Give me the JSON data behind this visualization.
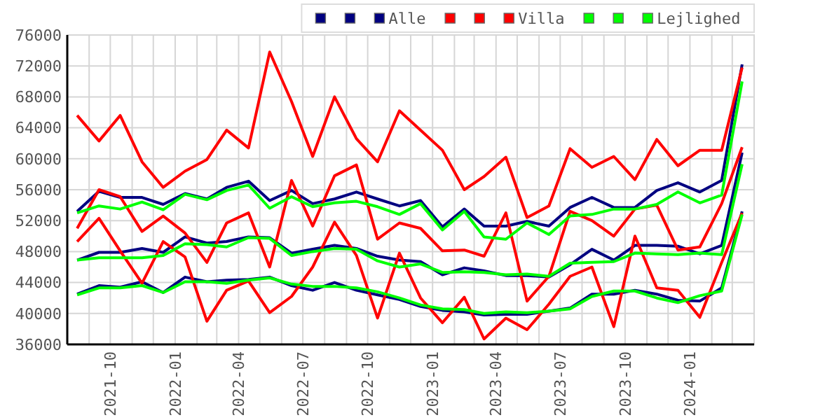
{
  "chart_data": {
    "type": "line",
    "x": [
      "2021-08-15",
      "2021-09-15",
      "2021-10-15",
      "2021-11-15",
      "2021-12-15",
      "2022-01-15",
      "2022-02-15",
      "2022-03-15",
      "2022-04-15",
      "2022-05-15",
      "2022-06-15",
      "2022-07-15",
      "2022-08-15",
      "2022-09-15",
      "2022-10-15",
      "2022-11-15",
      "2022-12-15",
      "2023-01-15",
      "2023-02-15",
      "2023-03-15",
      "2023-04-15",
      "2023-05-15",
      "2023-06-15",
      "2023-07-15",
      "2023-08-15",
      "2023-09-15",
      "2023-10-15",
      "2023-11-15",
      "2023-12-15",
      "2024-01-15",
      "2024-02-15",
      "2024-03-15"
    ],
    "series": [
      {
        "color": "#000080",
        "values": [
          53200,
          55800,
          55000,
          55000,
          54100,
          55500,
          54800,
          56300,
          57100,
          54600,
          55900,
          54200,
          54800,
          55700,
          54800,
          53900,
          54600,
          51200,
          53500,
          51300,
          51300,
          51900,
          51300,
          53700,
          55000,
          53700,
          53700,
          55900,
          56900,
          55700,
          57200,
          72200
        ]
      },
      {
        "color": "#000080",
        "values": [
          46900,
          47900,
          47900,
          48400,
          47900,
          49900,
          49100,
          49300,
          49900,
          49800,
          47800,
          48300,
          48800,
          48400,
          47400,
          46900,
          46700,
          45000,
          45900,
          45500,
          44900,
          44900,
          44700,
          46300,
          48300,
          46900,
          48800,
          48800,
          48700,
          47700,
          48800,
          60800
        ]
      },
      {
        "color": "#000080",
        "name": "Alle",
        "values": [
          42500,
          43600,
          43400,
          44100,
          42700,
          44700,
          44100,
          44300,
          44400,
          44700,
          43600,
          43000,
          44000,
          43000,
          42400,
          41800,
          40900,
          40400,
          40200,
          39800,
          39900,
          39900,
          40300,
          40700,
          42500,
          42500,
          43000,
          42500,
          41700,
          41600,
          43300,
          53200
        ]
      },
      {
        "color": "#ff0000",
        "values": [
          65600,
          62300,
          65600,
          59600,
          56300,
          58400,
          59900,
          63700,
          61400,
          73800,
          67400,
          60300,
          68000,
          62600,
          59600,
          66200,
          63700,
          61100,
          56000,
          57700,
          60200,
          52400,
          53900,
          61300,
          58900,
          60300,
          57300,
          62500,
          59100,
          61100,
          61100,
          71800
        ]
      },
      {
        "color": "#ff0000",
        "values": [
          51000,
          56000,
          55100,
          50600,
          52600,
          50400,
          46600,
          51700,
          53000,
          46000,
          57200,
          51300,
          57800,
          59200,
          49600,
          51700,
          51000,
          48100,
          48200,
          47400,
          53000,
          41600,
          44800,
          53200,
          52000,
          50000,
          53500,
          54000,
          48200,
          48600,
          54200,
          61500
        ]
      },
      {
        "color": "#ff0000",
        "name": "Villa",
        "values": [
          49300,
          52300,
          48100,
          43900,
          49300,
          47300,
          39000,
          43000,
          44200,
          40100,
          42200,
          46000,
          51800,
          47500,
          39400,
          47800,
          42000,
          38800,
          42100,
          36700,
          39400,
          37900,
          41200,
          44800,
          46000,
          38300,
          50000,
          43300,
          43000,
          39500,
          46600,
          53000
        ]
      },
      {
        "color": "#00ff00",
        "values": [
          53000,
          53900,
          53500,
          54400,
          53400,
          55400,
          54700,
          55900,
          56600,
          53600,
          55100,
          53800,
          54300,
          54500,
          53800,
          52800,
          54200,
          50800,
          53200,
          49900,
          49600,
          51700,
          50200,
          52600,
          52800,
          53500,
          53500,
          54100,
          55700,
          54300,
          55300,
          70000
        ]
      },
      {
        "color": "#00ff00",
        "values": [
          46900,
          47200,
          47200,
          47200,
          47500,
          49000,
          48900,
          48600,
          49800,
          49700,
          47500,
          48000,
          48400,
          48300,
          46800,
          46000,
          46400,
          45300,
          45400,
          45300,
          45000,
          45100,
          44800,
          46500,
          46600,
          46700,
          47800,
          47700,
          47600,
          47800,
          47600,
          59300
        ]
      },
      {
        "color": "#00ff00",
        "name": "Lejlighed",
        "values": [
          42400,
          43300,
          43300,
          43600,
          42700,
          44100,
          44100,
          43900,
          44300,
          44600,
          43800,
          43500,
          43500,
          43300,
          42800,
          42000,
          41100,
          40600,
          40500,
          40000,
          40200,
          40100,
          40300,
          40600,
          42200,
          42900,
          42900,
          42000,
          41400,
          42300,
          42900,
          52800
        ]
      }
    ],
    "xlim": [
      "2021-08",
      "2024-04"
    ],
    "xticks": [
      {
        "value": "2021-09",
        "label": null
      },
      "2021-10",
      {
        "value": "2021-11",
        "label": null
      },
      {
        "value": "2021-12",
        "label": null
      },
      "2022-01",
      {
        "value": "2022-02",
        "label": null
      },
      {
        "value": "2022-03",
        "label": null
      },
      "2022-04",
      {
        "value": "2022-05",
        "label": null
      },
      {
        "value": "2022-06",
        "label": null
      },
      "2022-07",
      {
        "value": "2022-08",
        "label": null
      },
      {
        "value": "2022-09",
        "label": null
      },
      "2022-10",
      {
        "value": "2022-11",
        "label": null
      },
      {
        "value": "2022-12",
        "label": null
      },
      "2023-01",
      {
        "value": "2023-02",
        "label": null
      },
      {
        "value": "2023-03",
        "label": null
      },
      "2023-04",
      {
        "value": "2023-05",
        "label": null
      },
      {
        "value": "2023-06",
        "label": null
      },
      "2023-07",
      {
        "value": "2023-08",
        "label": null
      },
      {
        "value": "2023-09",
        "label": null
      },
      "2023-10",
      {
        "value": "2023-11",
        "label": null
      },
      {
        "value": "2023-12",
        "label": null
      },
      "2024-01",
      {
        "value": "2024-02",
        "label": null
      },
      {
        "value": "2024-03",
        "label": null
      }
    ],
    "ylim": [
      36000,
      76000
    ],
    "yticks": [
      36000,
      40000,
      44000,
      48000,
      52000,
      56000,
      60000,
      64000,
      68000,
      72000,
      76000
    ],
    "grid": true,
    "legend": "top right",
    "marker": "none",
    "line_style": "solid"
  }
}
